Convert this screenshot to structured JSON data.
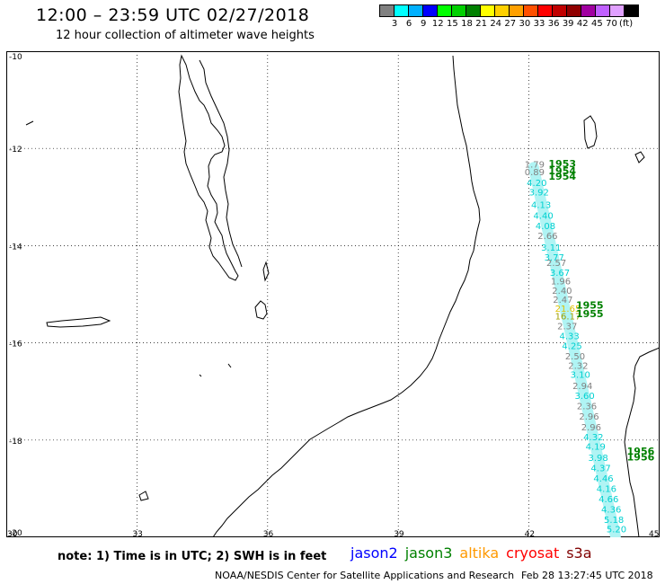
{
  "header": {
    "title": "12:00 – 23:59 UTC 02/27/2018",
    "subtitle": "12 hour collection of altimeter wave heights"
  },
  "colorbar": {
    "colors": [
      "#808080",
      "#00ffff",
      "#00b0ff",
      "#0000ff",
      "#00ff00",
      "#00d000",
      "#008000",
      "#ffff00",
      "#ffd000",
      "#ffa000",
      "#ff5000",
      "#ff0000",
      "#c00000",
      "#900000",
      "#a000a0",
      "#c060ff",
      "#e0a0ff",
      "#000000"
    ],
    "labels": [
      "3",
      "6",
      "9",
      "12",
      "15",
      "18",
      "21",
      "24",
      "27",
      "30",
      "33",
      "36",
      "39",
      "42",
      "45",
      "70",
      "(ft)"
    ]
  },
  "map": {
    "lat_labels": [
      "-10",
      "-12",
      "-14",
      "-16",
      "-18",
      "-20"
    ],
    "lon_labels": [
      "30",
      "33",
      "36",
      "39",
      "42",
      "45"
    ],
    "track_labels": [
      {
        "text": "1.79",
        "lon": 41.9,
        "lat": -12.39,
        "color": "#808080"
      },
      {
        "text": "0.89",
        "lon": 41.9,
        "lat": -12.55,
        "color": "#808080"
      },
      {
        "text": "4.20",
        "lon": 41.95,
        "lat": -12.77,
        "color": "#00d0d0"
      },
      {
        "text": "3.92",
        "lon": 42.0,
        "lat": -12.97,
        "color": "#00d0d0"
      },
      {
        "text": "4.13",
        "lon": 42.05,
        "lat": -13.23,
        "color": "#00d0d0"
      },
      {
        "text": "4.40",
        "lon": 42.1,
        "lat": -13.45,
        "color": "#00d0d0"
      },
      {
        "text": "4.08",
        "lon": 42.15,
        "lat": -13.66,
        "color": "#00d0d0"
      },
      {
        "text": "2.66",
        "lon": 42.2,
        "lat": -13.86,
        "color": "#808080"
      },
      {
        "text": "3.11",
        "lon": 42.28,
        "lat": -14.1,
        "color": "#00d0d0"
      },
      {
        "text": "3.77",
        "lon": 42.35,
        "lat": -14.31,
        "color": "#00d0d0"
      },
      {
        "text": "2.57",
        "lon": 42.4,
        "lat": -14.42,
        "color": "#808080"
      },
      {
        "text": "3.67",
        "lon": 42.48,
        "lat": -14.62,
        "color": "#00d0d0"
      },
      {
        "text": "1.96",
        "lon": 42.5,
        "lat": -14.8,
        "color": "#808080"
      },
      {
        "text": "2.40",
        "lon": 42.53,
        "lat": -14.99,
        "color": "#808080"
      },
      {
        "text": "2.47",
        "lon": 42.55,
        "lat": -15.18,
        "color": "#808080"
      },
      {
        "text": "21.65",
        "lon": 42.6,
        "lat": -15.36,
        "color": "#e0c000"
      },
      {
        "text": "16.17",
        "lon": 42.6,
        "lat": -15.52,
        "color": "#a0a000"
      },
      {
        "text": "2.37",
        "lon": 42.65,
        "lat": -15.72,
        "color": "#808080"
      },
      {
        "text": "4.33",
        "lon": 42.7,
        "lat": -15.92,
        "color": "#00d0d0"
      },
      {
        "text": "4.25",
        "lon": 42.76,
        "lat": -16.13,
        "color": "#00d0d0"
      },
      {
        "text": "2.50",
        "lon": 42.83,
        "lat": -16.34,
        "color": "#808080"
      },
      {
        "text": "2.32",
        "lon": 42.9,
        "lat": -16.53,
        "color": "#808080"
      },
      {
        "text": "3.10",
        "lon": 42.95,
        "lat": -16.72,
        "color": "#00d0d0"
      },
      {
        "text": "2.94",
        "lon": 43.0,
        "lat": -16.95,
        "color": "#808080"
      },
      {
        "text": "3.60",
        "lon": 43.05,
        "lat": -17.15,
        "color": "#00d0d0"
      },
      {
        "text": "2.36",
        "lon": 43.1,
        "lat": -17.37,
        "color": "#808080"
      },
      {
        "text": "2.96",
        "lon": 43.15,
        "lat": -17.58,
        "color": "#808080"
      },
      {
        "text": "2.96",
        "lon": 43.2,
        "lat": -17.8,
        "color": "#808080"
      },
      {
        "text": "4.32",
        "lon": 43.25,
        "lat": -18.0,
        "color": "#00d0d0"
      },
      {
        "text": "4.19",
        "lon": 43.3,
        "lat": -18.2,
        "color": "#00d0d0"
      },
      {
        "text": "3.98",
        "lon": 43.36,
        "lat": -18.43,
        "color": "#00d0d0"
      },
      {
        "text": "4.37",
        "lon": 43.42,
        "lat": -18.64,
        "color": "#00d0d0"
      },
      {
        "text": "4.46",
        "lon": 43.48,
        "lat": -18.85,
        "color": "#00d0d0"
      },
      {
        "text": "4.16",
        "lon": 43.55,
        "lat": -19.07,
        "color": "#00d0d0"
      },
      {
        "text": "4.66",
        "lon": 43.6,
        "lat": -19.28,
        "color": "#00d0d0"
      },
      {
        "text": "4.36",
        "lon": 43.66,
        "lat": -19.49,
        "color": "#00d0d0"
      },
      {
        "text": "5.18",
        "lon": 43.72,
        "lat": -19.7,
        "color": "#00d0d0"
      },
      {
        "text": "5.20",
        "lon": 43.78,
        "lat": -19.9,
        "color": "#00d0d0"
      }
    ],
    "time_labels": [
      {
        "text": "1953",
        "lon": 42.45,
        "lat": -12.38,
        "color": "#008000"
      },
      {
        "text": "1954",
        "lon": 42.45,
        "lat": -12.53,
        "color": "#008000"
      },
      {
        "text": "1954",
        "lon": 42.45,
        "lat": -12.64,
        "color": "#008000"
      },
      {
        "text": "1955",
        "lon": 43.08,
        "lat": -15.3,
        "color": "#008000"
      },
      {
        "text": "1955",
        "lon": 43.08,
        "lat": -15.47,
        "color": "#008000"
      },
      {
        "text": "1956",
        "lon": 44.25,
        "lat": -18.3,
        "color": "#008000"
      },
      {
        "text": "1956",
        "lon": 44.25,
        "lat": -18.42,
        "color": "#008000"
      }
    ]
  },
  "footer": {
    "note": "note: 1) Time is in UTC; 2) SWH is in feet",
    "satellites": [
      {
        "name": "jason2",
        "color": "#0000ff"
      },
      {
        "name": "jason3",
        "color": "#008000"
      },
      {
        "name": "altika",
        "color": "#ff9900"
      },
      {
        "name": "cryosat",
        "color": "#ff0000"
      },
      {
        "name": "s3a",
        "color": "#800000"
      }
    ],
    "credit": "NOAA/NESDIS Center for Satellite Applications and Research",
    "timestamp": "Feb 28 13:27:45 UTC 2018"
  }
}
